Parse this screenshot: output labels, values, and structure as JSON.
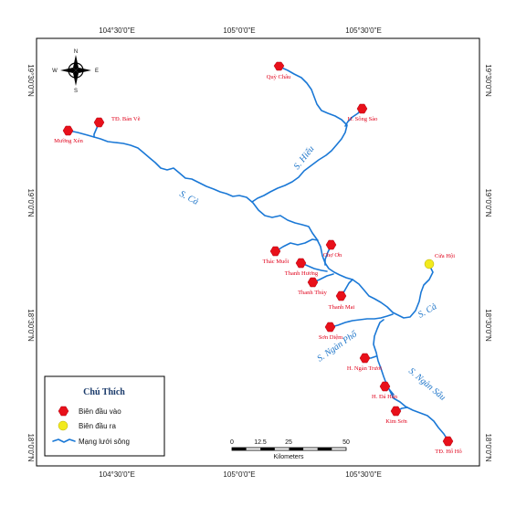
{
  "graticule": {
    "top": [
      "104°30'0\"E",
      "105°0'0\"E",
      "105°30'0\"E"
    ],
    "bottom": [
      "104°30'0\"E",
      "105°0'0\"E",
      "105°30'0\"E"
    ],
    "left": [
      "19°30'0\"N",
      "19°0'0\"N",
      "18°30'0\"N",
      "18°0'0\"N"
    ],
    "right": [
      "19°30'0\"N",
      "19°0'0\"N",
      "18°30'0\"N",
      "18°0'0\"N"
    ]
  },
  "compass": {
    "n": "N",
    "s": "S",
    "e": "E",
    "w": "W"
  },
  "rivers": [
    "S. Hiếu",
    "S. Cả",
    "S. Cả",
    "S. Ngàn Phố",
    "S. Ngàn Sâu"
  ],
  "stations_in": [
    "Quỳ Châu",
    "H. Sông Sào",
    "TĐ. Bản Vẽ",
    "Mường Xén",
    "Thác Muối",
    "Chợ Ơn",
    "Thanh Hương",
    "Thanh Thủy",
    "Thanh Mai",
    "Sơn Diệm",
    "H. Ngàn Trươi",
    "H. Đá Hàn",
    "Kim Sơn",
    "TĐ. Hố Hô"
  ],
  "stations_out": [
    "Cửa Hội"
  ],
  "legend": {
    "title": "Chú Thích",
    "items": [
      "Biên đầu vào",
      "Biên đầu ra",
      "Mạng lưới sông"
    ]
  },
  "scale": {
    "ticks": [
      "0",
      "12.5",
      "25",
      "50"
    ],
    "unit": "Kilometers"
  },
  "colors": {
    "river": "#1a78d6",
    "input": "#e8101a",
    "output": "#f2ea1e",
    "label": "#e0001a"
  }
}
